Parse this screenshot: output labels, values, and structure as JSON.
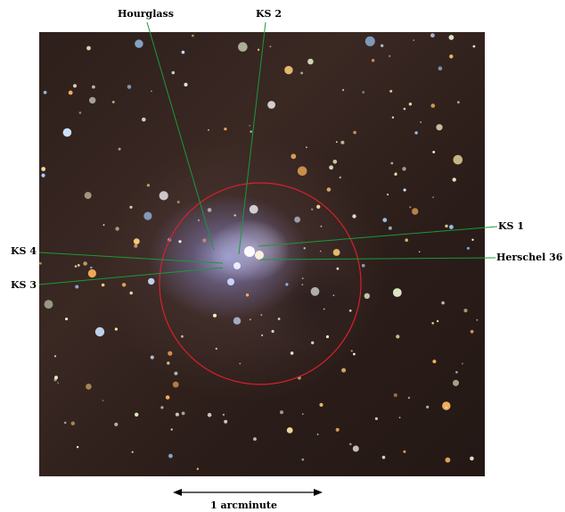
{
  "labels": {
    "hourglass": "Hourglass",
    "ks2": "KS 2",
    "ks1": "KS 1",
    "herschel36": "Herschel 36",
    "ks4": "KS 4",
    "ks3": "KS 3"
  },
  "scale_bar": {
    "label": "1 arcminute"
  },
  "colors": {
    "pointer_line": "#1a9a3a",
    "region_circle": "#d8202a",
    "label_text": "#000000"
  }
}
